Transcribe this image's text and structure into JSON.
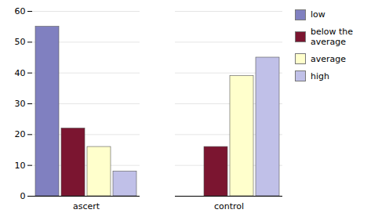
{
  "chart_data": {
    "type": "bar",
    "categories": [
      "ascert",
      "control"
    ],
    "series": [
      {
        "name": "low",
        "color": "#8080c0",
        "values": [
          55,
          0
        ]
      },
      {
        "name": "below the\naverage",
        "color": "#7b1530",
        "values": [
          22,
          16
        ]
      },
      {
        "name": "average",
        "color": "#ffffcc",
        "values": [
          16,
          39
        ]
      },
      {
        "name": "high",
        "color": "#c0c0e8",
        "values": [
          8,
          45
        ]
      }
    ],
    "ylim": [
      0,
      60
    ],
    "yticks": [
      0,
      10,
      20,
      30,
      40,
      50,
      60
    ],
    "grid": true,
    "legend": "right"
  }
}
